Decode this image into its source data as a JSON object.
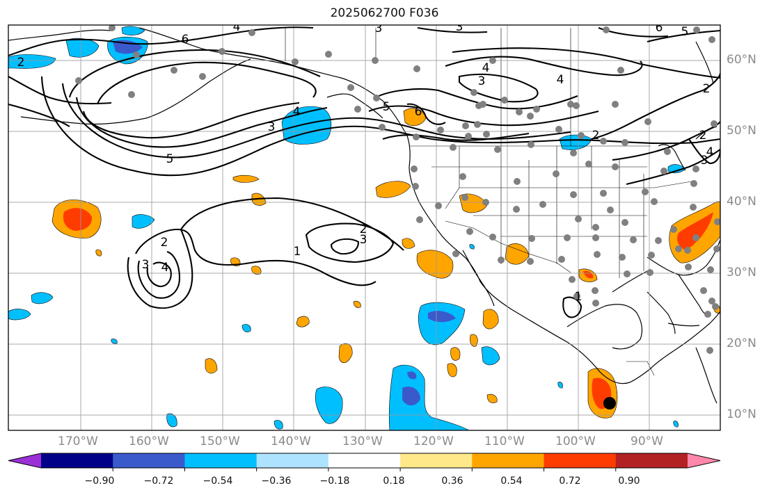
{
  "title": "2025062700 F036",
  "lat_labels": [
    "60°N",
    "50°N",
    "40°N",
    "30°N",
    "20°N",
    "10°N"
  ],
  "lon_labels": [
    "170°W",
    "160°W",
    "150°W",
    "140°W",
    "130°W",
    "120°W",
    "110°W",
    "100°W",
    "90°W"
  ],
  "colorbar": {
    "tick_labels": [
      "−0.90",
      "−0.72",
      "−0.54",
      "−0.36",
      "−0.18",
      "0.18",
      "0.36",
      "0.54",
      "0.72",
      "0.90"
    ],
    "colors": [
      "#9b30d8",
      "#000088",
      "#3a5acc",
      "#00bfff",
      "#aee3ff",
      "#ffffff",
      "#ffe88a",
      "#ffa500",
      "#ff3c00",
      "#b22222",
      "#ff88aa"
    ]
  },
  "contour_labels": [
    "2",
    "3",
    "4",
    "5",
    "6",
    "2",
    "3",
    "4",
    "5",
    "6",
    "3",
    "2",
    "3",
    "1",
    "3",
    "4",
    "2",
    "3",
    "4",
    "1",
    "2",
    "4",
    "5",
    "6",
    "3",
    "4",
    "2"
  ],
  "colors": {
    "grid": "#999999",
    "coast": "#000000",
    "contour": "#000000",
    "station_dot": "#808080",
    "marker": "#000000"
  }
}
